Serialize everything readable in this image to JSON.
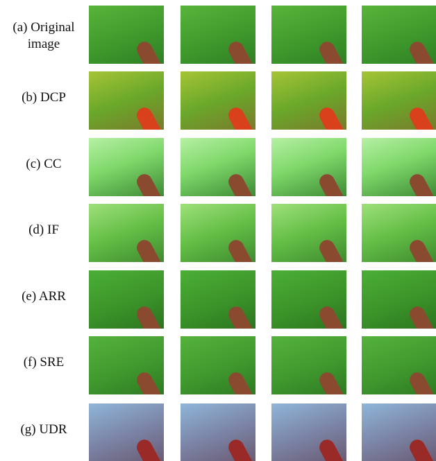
{
  "rows": [
    {
      "label": "(a) Original image"
    },
    {
      "label": "(b) DCP"
    },
    {
      "label": "(c) CC"
    },
    {
      "label": "(d) IF"
    },
    {
      "label": "(e) ARR"
    },
    {
      "label": "(f) SRE"
    },
    {
      "label": "(g) UDR"
    }
  ]
}
